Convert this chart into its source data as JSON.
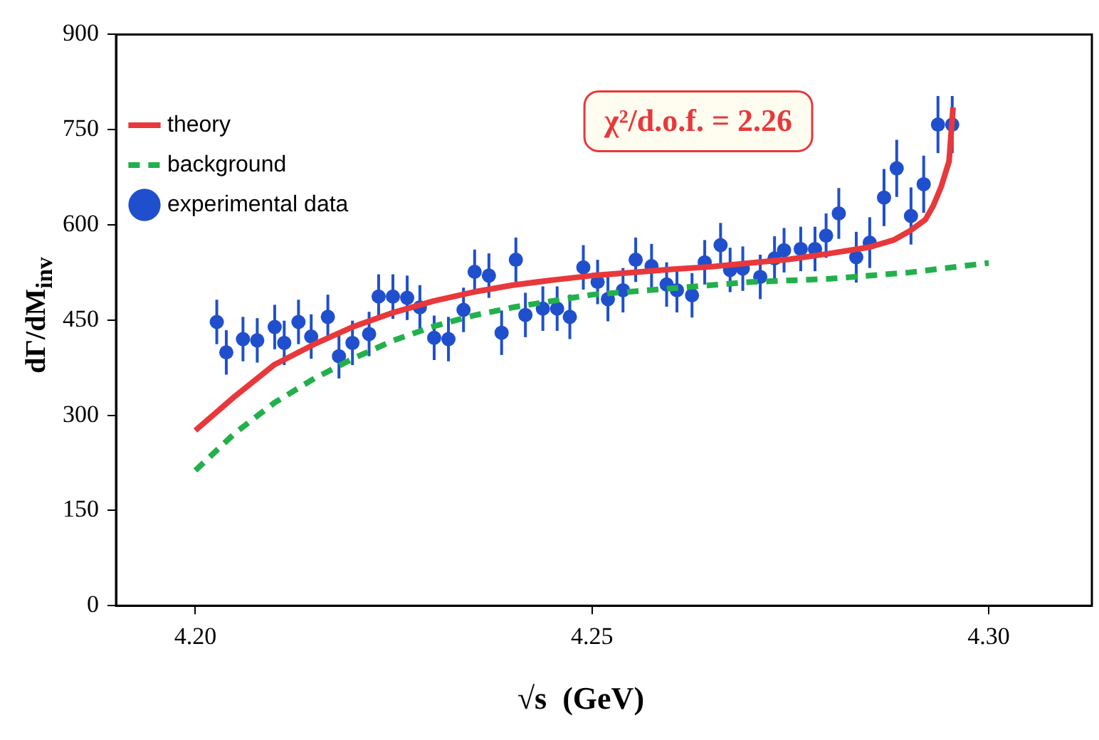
{
  "chart_data": {
    "type": "scatter",
    "xlabel": "√s  (GeV)",
    "ylabel": "dΓ/dM$_{inv}$",
    "xlim": [
      4.19,
      4.313
    ],
    "xticks": [
      {
        "value": 4.2,
        "label": "4.20"
      },
      {
        "value": 4.25,
        "label": "4.25"
      },
      {
        "value": 4.3,
        "label": "4.30"
      }
    ],
    "ylim": [
      0,
      900
    ],
    "yticks": [
      0,
      150,
      300,
      450,
      600,
      750,
      900
    ],
    "grid": false,
    "legend": "top left",
    "annotations": [
      "χ²/d.o.f. = 2.26"
    ],
    "series": [
      {
        "name": "theory",
        "type": "line",
        "color": "#e8383b",
        "line_style": "solid",
        "marker": "none",
        "x": [
          4.2,
          4.205,
          4.21,
          4.215,
          4.22,
          4.225,
          4.23,
          4.235,
          4.24,
          4.245,
          4.25,
          4.255,
          4.26,
          4.265,
          4.27,
          4.275,
          4.28,
          4.285,
          4.288,
          4.29,
          4.292,
          4.293,
          4.294,
          4.295,
          4.2955
        ],
        "values": [
          276,
          330,
          380,
          412,
          440,
          462,
          480,
          494,
          505,
          513,
          520,
          525,
          530,
          534,
          540,
          546,
          555,
          565,
          576,
          590,
          608,
          630,
          660,
          700,
          785
        ]
      },
      {
        "name": "background",
        "type": "line",
        "color": "#22b04b",
        "line_style": "dashed",
        "marker": "none",
        "x": [
          4.2,
          4.205,
          4.21,
          4.215,
          4.22,
          4.225,
          4.23,
          4.235,
          4.24,
          4.25,
          4.26,
          4.27,
          4.28,
          4.29,
          4.3
        ],
        "values": [
          213,
          272,
          320,
          358,
          390,
          418,
          440,
          457,
          470,
          490,
          500,
          510,
          515,
          525,
          540
        ]
      },
      {
        "name": "experimental data",
        "type": "scatter",
        "color": "#1f4fcc",
        "marker": "circle",
        "x": [
          4.2027,
          4.2039,
          4.206,
          4.2078,
          4.21,
          4.2112,
          4.213,
          4.2146,
          4.2167,
          4.2181,
          4.2198,
          4.2219,
          4.2231,
          4.2249,
          4.2267,
          4.2283,
          4.2301,
          4.2319,
          4.2338,
          4.2352,
          4.237,
          4.2386,
          4.2404,
          4.2416,
          4.2438,
          4.2456,
          4.2472,
          4.2489,
          4.2507,
          4.252,
          4.2539,
          4.2555,
          4.2575,
          4.2594,
          4.2607,
          4.2626,
          4.2642,
          4.2662,
          4.2674,
          4.269,
          4.2712,
          4.273,
          4.2742,
          4.2763,
          4.2781,
          4.2795,
          4.2811,
          4.2833,
          4.285,
          4.2868,
          4.2884,
          4.2902,
          4.2918,
          4.2936,
          4.2954
        ],
        "values": [
          447,
          399,
          420,
          418,
          439,
          414,
          447,
          424,
          455,
          393,
          414,
          428,
          487,
          487,
          485,
          470,
          422,
          420,
          466,
          526,
          520,
          430,
          545,
          458,
          468,
          468,
          455,
          533,
          510,
          483,
          497,
          545,
          535,
          506,
          497,
          489,
          541,
          568,
          529,
          531,
          518,
          547,
          560,
          562,
          562,
          583,
          618,
          549,
          572,
          643,
          689,
          614,
          664,
          758,
          758
        ],
        "errors": [
          35,
          35,
          35,
          35,
          35,
          35,
          35,
          35,
          35,
          35,
          35,
          35,
          35,
          35,
          35,
          35,
          35,
          35,
          35,
          35,
          35,
          35,
          35,
          35,
          35,
          35,
          35,
          35,
          35,
          35,
          35,
          35,
          35,
          35,
          35,
          35,
          35,
          35,
          35,
          35,
          35,
          35,
          35,
          35,
          35,
          35,
          40,
          40,
          40,
          45,
          45,
          45,
          45,
          45,
          45
        ]
      }
    ]
  }
}
